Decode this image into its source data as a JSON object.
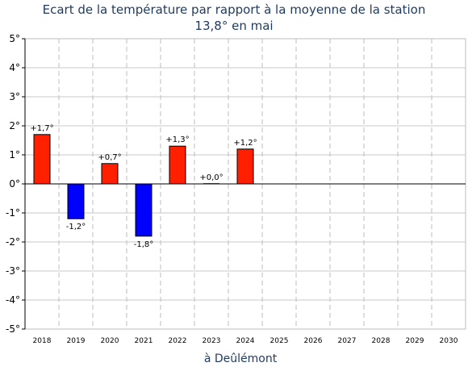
{
  "chart_data": {
    "type": "bar",
    "title": "Ecart de la température par rapport à la moyenne de la station",
    "subtitle": "13,8° en mai",
    "xlabel": "à Deûlémont",
    "ylabel": "",
    "categories": [
      "2018",
      "2019",
      "2020",
      "2021",
      "2022",
      "2023",
      "2024",
      "2025",
      "2026",
      "2027",
      "2028",
      "2029",
      "2030"
    ],
    "values": [
      1.7,
      -1.2,
      0.7,
      -1.8,
      1.3,
      0.0,
      1.2,
      null,
      null,
      null,
      null,
      null,
      null
    ],
    "data_labels": [
      "+1,7°",
      "-1,2°",
      "+0,7°",
      "-1,8°",
      "+1,3°",
      "+0,0°",
      "+1,2°",
      "",
      "",
      "",
      "",
      "",
      ""
    ],
    "y_tick_labels": [
      "5°",
      "4°",
      "3°",
      "2°",
      "1°",
      "0°",
      "-1°",
      "-2°",
      "-3°",
      "-4°",
      "-5°"
    ],
    "ylim": [
      -5,
      5
    ],
    "grid": true,
    "colors": {
      "positive": "#ff2000",
      "negative": "#0000ff",
      "title": "#1f3a5f",
      "grid": "#c8c8c8"
    }
  }
}
